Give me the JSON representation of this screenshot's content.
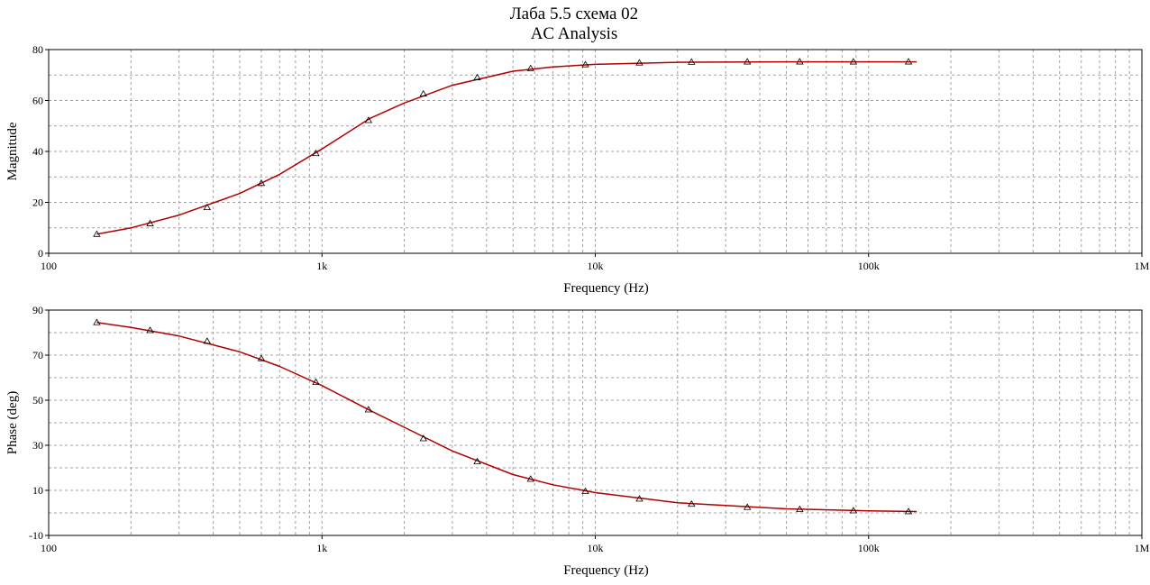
{
  "window": {
    "title": "Лаба 5.5 схема 02",
    "subtitle": "AC Analysis"
  },
  "colors": {
    "background": "#ffffff",
    "plot_frame": "#000000",
    "grid": "#a0a0a0",
    "series": "#b00000",
    "marker": "#000000"
  },
  "chart_data": [
    {
      "type": "line",
      "xscale": "log",
      "xlabel": "Frequency (Hz)",
      "ylabel": "Magnitude",
      "xlim": [
        100,
        1000000
      ],
      "ylim": [
        0,
        80
      ],
      "xticks": [
        100,
        1000,
        10000,
        100000,
        1000000
      ],
      "xtick_labels": [
        "100",
        "1k",
        "10k",
        "100k",
        "1M"
      ],
      "yticks": [
        0,
        20,
        40,
        60,
        80
      ],
      "ytick_labels": [
        "0",
        "20",
        "40",
        "60",
        "80"
      ],
      "grid": true,
      "legend": "none",
      "series": [
        {
          "x": [
            150,
            200,
            300,
            500,
            700,
            1000,
            1500,
            2000,
            3000,
            5000,
            7000,
            10000,
            20000,
            50000,
            100000,
            150000
          ],
          "values": [
            7.5,
            10,
            15,
            23.5,
            31,
            41,
            53,
            59,
            66,
            71.5,
            73.2,
            74.2,
            75,
            75.2,
            75.2,
            75.2
          ]
        }
      ],
      "markers": {
        "x": [
          150,
          235,
          380,
          600,
          950,
          1480,
          2350,
          3700,
          5800,
          9200,
          14500,
          22500,
          36000,
          56000,
          88000,
          140000
        ],
        "values": [
          7.5,
          11.7,
          18,
          27.5,
          39.2,
          52.2,
          62.6,
          69,
          72.6,
          74.1,
          74.8,
          75.1,
          75.2,
          75.2,
          75.2,
          75.2
        ]
      }
    },
    {
      "type": "line",
      "xscale": "log",
      "xlabel": "Frequency (Hz)",
      "ylabel": "Phase (deg)",
      "xlim": [
        100,
        1000000
      ],
      "ylim": [
        -10,
        90
      ],
      "xticks": [
        100,
        1000,
        10000,
        100000,
        1000000
      ],
      "xtick_labels": [
        "100",
        "1k",
        "10k",
        "100k",
        "1M"
      ],
      "yticks": [
        -10,
        10,
        30,
        50,
        70,
        90
      ],
      "ytick_labels": [
        "-10",
        "10",
        "30",
        "50",
        "70",
        "90"
      ],
      "grid": true,
      "legend": "none",
      "series": [
        {
          "x": [
            150,
            200,
            300,
            500,
            700,
            1000,
            1500,
            2000,
            3000,
            5000,
            7000,
            10000,
            20000,
            50000,
            100000,
            150000
          ],
          "values": [
            84.5,
            82.3,
            78.5,
            71.5,
            65,
            56.5,
            45.5,
            38,
            27.5,
            17,
            12.5,
            9,
            4.5,
            1.8,
            0.9,
            0.6
          ]
        }
      ],
      "markers": {
        "x": [
          150,
          235,
          380,
          600,
          950,
          1480,
          2350,
          3700,
          5800,
          9200,
          14500,
          22500,
          36000,
          56000,
          88000,
          140000
        ],
        "values": [
          84.5,
          81,
          76.2,
          68.5,
          58,
          45.8,
          33,
          22.8,
          15,
          9.6,
          6.2,
          3.9,
          2.5,
          1.6,
          1.0,
          0.6
        ]
      }
    }
  ]
}
